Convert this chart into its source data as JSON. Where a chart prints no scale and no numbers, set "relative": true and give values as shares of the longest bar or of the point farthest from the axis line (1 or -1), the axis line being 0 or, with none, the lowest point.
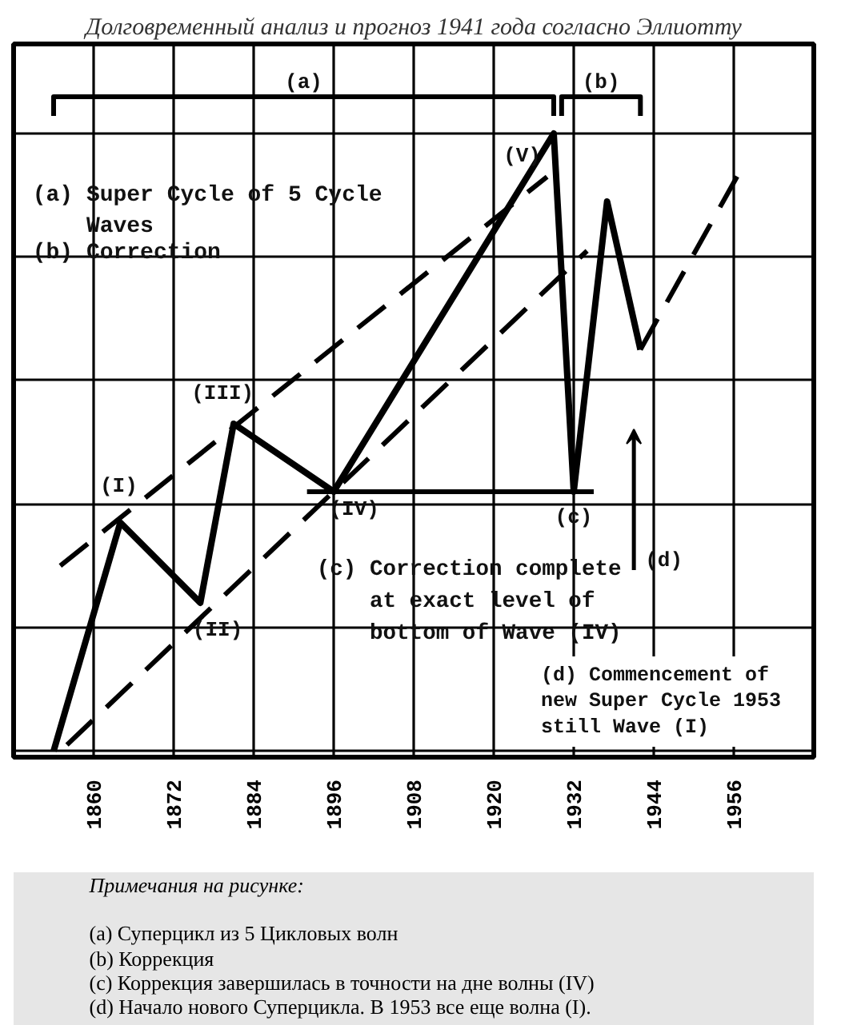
{
  "chart_data": {
    "type": "line",
    "title": "Долговременный анализ и прогноз 1941 года согласно Эллиотту",
    "relative": true,
    "xlim": [
      1848,
      1968
    ],
    "xticks": [
      1860,
      1872,
      1884,
      1896,
      1908,
      1920,
      1932,
      1944,
      1956
    ],
    "grid": true,
    "series": [
      {
        "color": "#000000",
        "x": [
          1854,
          1864,
          1876,
          1881,
          1896,
          1929,
          1932,
          1937,
          1942
        ],
        "values": [
          0,
          0.37,
          0.24,
          0.53,
          0.42,
          1,
          0.42,
          0.89,
          0.65
        ]
      },
      {
        "color": "#000000",
        "line_style": "dashed",
        "x": [
          1855,
          1928
        ],
        "values": [
          0.3,
          0.93
        ]
      },
      {
        "color": "#000000",
        "line_style": "dashed",
        "x": [
          1856,
          1934
        ],
        "values": [
          0.01,
          0.81
        ]
      },
      {
        "color": "#000000",
        "x": [
          1892,
          1935
        ],
        "values": [
          0.42,
          0.42
        ]
      },
      {
        "color": "#000000",
        "line_style": "dashed",
        "x": [
          1942,
          1957
        ],
        "values": [
          0.65,
          0.94
        ]
      }
    ],
    "annotations": [
      "(a)",
      "(b)",
      "(a) Super Cycle of 5 Cycle Waves",
      "(b) Correction",
      {
        "text": "(I)",
        "x": 1864,
        "y": 0.37
      },
      {
        "text": "(II)",
        "x": 1876,
        "y": 0.24
      },
      {
        "text": "(III)",
        "x": 1881,
        "y": 0.53
      },
      {
        "text": "(IV)",
        "x": 1896,
        "y": 0.42
      },
      {
        "text": "(V)",
        "x": 1929,
        "y": 1
      },
      {
        "text": "(c)",
        "x": 1932,
        "y": 0.42
      },
      "(c) Correction complete at exact level of bottom of Wave (IV)",
      "(d)",
      "(d) Commencement of new Super Cycle 1953 still Wave (I)",
      "Примечания на рисунке:",
      "(a) Суперцикл из 5 Цикловых волн",
      "(b) Коррекция",
      "(c) Коррекция завершилась в точности на дне волны (IV)",
      "(d) Начало нового Суперцикла. В 1953 все еще волна (I)."
    ]
  }
}
